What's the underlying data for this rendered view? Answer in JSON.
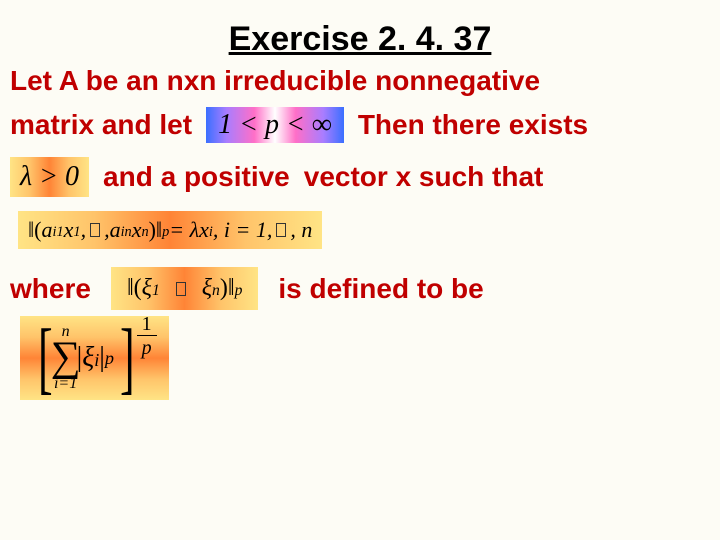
{
  "title": "Exercise 2. 4. 37",
  "text": {
    "line1": "Let A be an nxn irreducible nonnegative",
    "line2a": "matrix and let",
    "line2b": "Then there exists",
    "line3a": "and a positive",
    "line3b": "vector x such that",
    "where": "where",
    "defined": "is defined to be"
  },
  "formulas": {
    "p_range": "1 < p < ∞",
    "lambda": "λ > 0",
    "norm_eq_left_open": "‖(",
    "norm_eq_a1": "a",
    "norm_eq_a1_sub": "i1",
    "norm_eq_x1": "x",
    "norm_eq_x1_sub": "1",
    "norm_eq_comma1": " , ",
    "norm_eq_an": "a",
    "norm_eq_an_sub": "in",
    "norm_eq_xn": "x",
    "norm_eq_xn_sub": "n",
    "norm_eq_right_close": ")‖",
    "norm_eq_psub": "p",
    "norm_eq_rhs": " = λx",
    "norm_eq_rhs_sub": "i",
    "norm_eq_rhs2": " , i = 1,",
    "norm_eq_rhs3": " , n",
    "norm_def_open": "‖(",
    "norm_def_xi1": "ξ",
    "norm_def_xi1_sub": "1",
    "norm_def_xin": "ξ",
    "norm_def_xin_sub": "n",
    "norm_def_close": ")‖",
    "norm_def_psub": "p",
    "sum_top": "n",
    "sum_bottom": "i=1",
    "sum_abs_open": "|",
    "sum_xi": "ξ",
    "sum_xi_sub": "i",
    "sum_abs_close": "|",
    "sum_pow": "p",
    "frac_num": "1",
    "frac_den": "p"
  },
  "colors": {
    "title": "#000000",
    "body_text": "#c00000",
    "background": "#fdfcf5"
  },
  "fonts": {
    "title_size": 34,
    "body_size": 28
  }
}
